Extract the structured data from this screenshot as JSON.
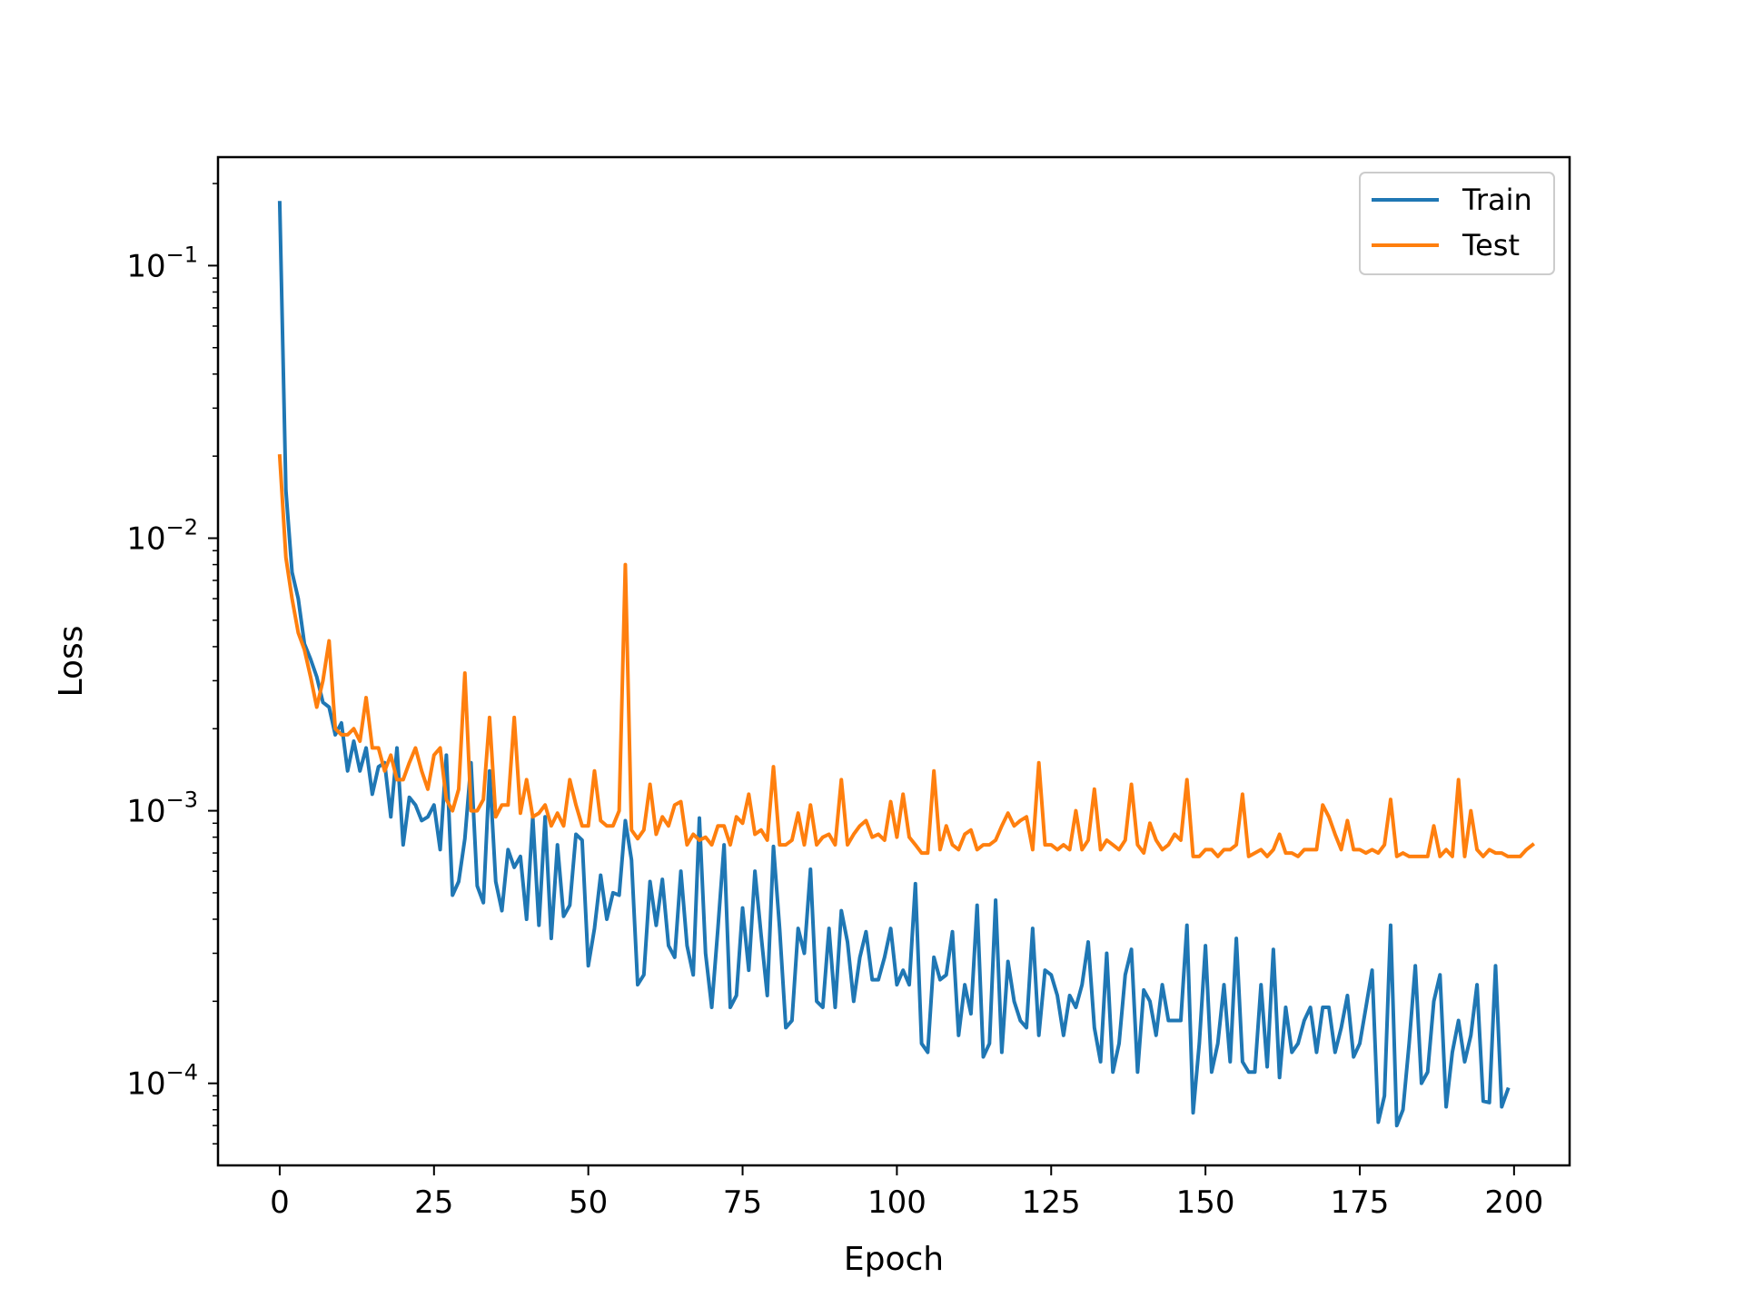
{
  "chart_data": {
    "type": "line",
    "title": "",
    "xlabel": "Epoch",
    "ylabel": "Loss",
    "xlim": [
      -10,
      209
    ],
    "ylim": [
      5e-05,
      0.25
    ],
    "yscale": "log",
    "x_ticks": [
      0,
      25,
      50,
      75,
      100,
      125,
      150,
      175,
      200
    ],
    "x_tick_labels": [
      "0",
      "25",
      "50",
      "75",
      "100",
      "125",
      "150",
      "175",
      "200"
    ],
    "y_ticks": [
      0.1,
      0.01,
      0.001,
      0.0001
    ],
    "y_tick_labels": [
      {
        "base": "10",
        "exp": "−1"
      },
      {
        "base": "10",
        "exp": "−2"
      },
      {
        "base": "10",
        "exp": "−3"
      },
      {
        "base": "10",
        "exp": "−4"
      }
    ],
    "grid": false,
    "legend": "top-right",
    "series": [
      {
        "name": "Train",
        "color": "#1f77b4",
        "x_start": 0,
        "x_step": 1,
        "values": [
          0.17,
          0.015,
          0.0075,
          0.006,
          0.0041,
          0.0036,
          0.0031,
          0.0025,
          0.0024,
          0.0019,
          0.0021,
          0.0014,
          0.0018,
          0.0014,
          0.0017,
          0.00115,
          0.00145,
          0.0015,
          0.00095,
          0.0017,
          0.00075,
          0.00112,
          0.00105,
          0.00092,
          0.00095,
          0.00105,
          0.00072,
          0.0016,
          0.00049,
          0.00055,
          0.00079,
          0.0015,
          0.00053,
          0.00046,
          0.0014,
          0.00055,
          0.00043,
          0.00072,
          0.00062,
          0.00068,
          0.0004,
          0.00095,
          0.00038,
          0.00095,
          0.00034,
          0.00075,
          0.00041,
          0.00045,
          0.00082,
          0.00078,
          0.00027,
          0.00037,
          0.00058,
          0.0004,
          0.0005,
          0.00049,
          0.00092,
          0.00066,
          0.00023,
          0.00025,
          0.00055,
          0.00038,
          0.00056,
          0.00032,
          0.00029,
          0.0006,
          0.00032,
          0.00025,
          0.00094,
          0.0003,
          0.00019,
          0.00037,
          0.00075,
          0.00019,
          0.00021,
          0.00044,
          0.00026,
          0.0006,
          0.00035,
          0.00021,
          0.00074,
          0.00037,
          0.00016,
          0.00017,
          0.00037,
          0.0003,
          0.00061,
          0.0002,
          0.00019,
          0.00037,
          0.00019,
          0.00043,
          0.00033,
          0.0002,
          0.00029,
          0.00036,
          0.00024,
          0.00024,
          0.00029,
          0.00037,
          0.00023,
          0.00026,
          0.00023,
          0.00054,
          0.00014,
          0.00013,
          0.00029,
          0.00024,
          0.00025,
          0.00036,
          0.00015,
          0.00023,
          0.00018,
          0.00045,
          0.000125,
          0.00014,
          0.00047,
          0.00013,
          0.00028,
          0.0002,
          0.00017,
          0.00016,
          0.00037,
          0.00015,
          0.00026,
          0.00025,
          0.00021,
          0.00015,
          0.00021,
          0.00019,
          0.00023,
          0.00033,
          0.00016,
          0.00012,
          0.0003,
          0.00011,
          0.00014,
          0.00025,
          0.00031,
          0.00011,
          0.00022,
          0.0002,
          0.00015,
          0.00023,
          0.00017,
          0.00017,
          0.00017,
          0.00038,
          7.8e-05,
          0.00014,
          0.00032,
          0.00011,
          0.00014,
          0.00023,
          0.00012,
          0.00034,
          0.00012,
          0.00011,
          0.00011,
          0.00023,
          0.000115,
          0.00031,
          0.000105,
          0.00019,
          0.00013,
          0.00014,
          0.00017,
          0.00019,
          0.00013,
          0.00019,
          0.00019,
          0.00013,
          0.00016,
          0.00021,
          0.000125,
          0.00014,
          0.00019,
          0.00026,
          7.2e-05,
          9e-05,
          0.00038,
          7e-05,
          8e-05,
          0.00014,
          0.00027,
          0.0001,
          0.00011,
          0.0002,
          0.00025,
          8.2e-05,
          0.00013,
          0.00017,
          0.00012,
          0.00015,
          0.00023,
          8.6e-05,
          8.5e-05,
          0.00027,
          8.2e-05,
          9.5e-05
        ]
      },
      {
        "name": "Test",
        "color": "#ff7f0e",
        "x_start": 0,
        "x_step": 1,
        "values": [
          0.02,
          0.0085,
          0.006,
          0.0045,
          0.0039,
          0.0031,
          0.0024,
          0.003,
          0.0042,
          0.002,
          0.0019,
          0.0019,
          0.002,
          0.0018,
          0.0026,
          0.0017,
          0.0017,
          0.0014,
          0.0016,
          0.0013,
          0.0013,
          0.0015,
          0.0017,
          0.0014,
          0.0012,
          0.0016,
          0.0017,
          0.0011,
          0.001,
          0.0012,
          0.0032,
          0.001,
          0.001,
          0.0011,
          0.0022,
          0.00095,
          0.00105,
          0.00105,
          0.0022,
          0.00098,
          0.0013,
          0.00095,
          0.00098,
          0.00105,
          0.00088,
          0.00098,
          0.00088,
          0.0013,
          0.00105,
          0.00088,
          0.00088,
          0.0014,
          0.00092,
          0.00088,
          0.00088,
          0.001,
          0.008,
          0.00085,
          0.00079,
          0.00085,
          0.00125,
          0.00082,
          0.00095,
          0.00088,
          0.00105,
          0.00108,
          0.00075,
          0.00082,
          0.00078,
          0.0008,
          0.00075,
          0.00088,
          0.00088,
          0.00075,
          0.00095,
          0.0009,
          0.00115,
          0.00082,
          0.00085,
          0.00078,
          0.00145,
          0.00075,
          0.00075,
          0.00078,
          0.00098,
          0.00075,
          0.00105,
          0.00075,
          0.0008,
          0.00082,
          0.00075,
          0.0013,
          0.00075,
          0.00082,
          0.00088,
          0.00092,
          0.0008,
          0.00082,
          0.00078,
          0.00108,
          0.0008,
          0.00115,
          0.0008,
          0.00075,
          0.0007,
          0.0007,
          0.0014,
          0.00072,
          0.00088,
          0.00075,
          0.00072,
          0.00082,
          0.00085,
          0.00072,
          0.00075,
          0.00075,
          0.00078,
          0.00088,
          0.00098,
          0.00088,
          0.00092,
          0.00095,
          0.00072,
          0.0015,
          0.00075,
          0.00075,
          0.00072,
          0.00075,
          0.00072,
          0.001,
          0.00072,
          0.00078,
          0.0012,
          0.00072,
          0.00078,
          0.00075,
          0.00072,
          0.00078,
          0.00125,
          0.00075,
          0.0007,
          0.0009,
          0.00078,
          0.00072,
          0.00075,
          0.00082,
          0.00078,
          0.0013,
          0.00068,
          0.00068,
          0.00072,
          0.00072,
          0.00068,
          0.00072,
          0.00072,
          0.00075,
          0.00115,
          0.00068,
          0.0007,
          0.00072,
          0.00068,
          0.00072,
          0.00082,
          0.0007,
          0.0007,
          0.00068,
          0.00072,
          0.00072,
          0.00072,
          0.00105,
          0.00095,
          0.00082,
          0.00072,
          0.00092,
          0.00072,
          0.00072,
          0.0007,
          0.00072,
          0.0007,
          0.00075,
          0.0011,
          0.00068,
          0.0007,
          0.00068,
          0.00068,
          0.00068,
          0.00068,
          0.00088,
          0.00068,
          0.00072,
          0.00068,
          0.0013,
          0.00068,
          0.001,
          0.00072,
          0.00068,
          0.00072,
          0.0007,
          0.0007,
          0.00068,
          0.00068,
          0.00068,
          0.00072,
          0.00075
        ]
      }
    ]
  }
}
